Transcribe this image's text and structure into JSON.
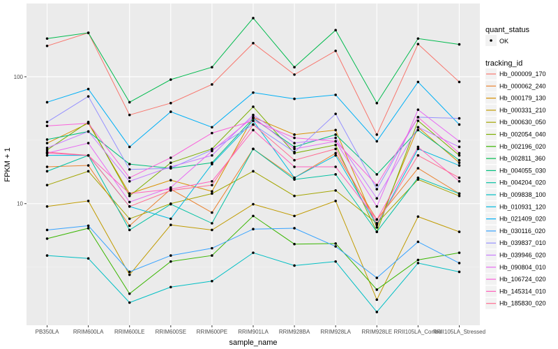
{
  "chart_data": {
    "type": "line",
    "xlabel": "sample_name",
    "ylabel": "FPKM + 1",
    "yscale": "log10",
    "ylim": [
      1.1,
      378
    ],
    "yticks": [
      10,
      100
    ],
    "ytick_labels": [
      "10",
      "100"
    ],
    "grid": true,
    "legend_position": "right",
    "categories": [
      "PB350LA",
      "RRIM600LA",
      "RRIM600LE",
      "RRIM600SE",
      "RRIM600PE",
      "RRIM901LA",
      "RRIM928BA",
      "RRIM928LA",
      "RRIM928LE",
      "RRII105LA_Control",
      "RRII105LA_Stressed"
    ],
    "shape_legend": {
      "title": "quant_status",
      "items": [
        "OK"
      ]
    },
    "color_legend_title": "tracking_id",
    "series": [
      {
        "name": "Hb_000009_170",
        "color": "#F8766D",
        "values": [
          175,
          222,
          50,
          62,
          87,
          184,
          104,
          160,
          35,
          181,
          91
        ]
      },
      {
        "name": "Hb_000062_240",
        "color": "#EA8331",
        "values": [
          19.5,
          20,
          6.7,
          13,
          8.5,
          27,
          16,
          25,
          7.5,
          19,
          12
        ]
      },
      {
        "name": "Hb_000179_130",
        "color": "#D89000",
        "values": [
          30,
          43,
          12,
          15.3,
          12.5,
          48,
          35,
          38,
          6.5,
          40,
          21
        ]
      },
      {
        "name": "Hb_000331_210",
        "color": "#C09B00",
        "values": [
          9.5,
          10.5,
          2.75,
          6.8,
          6.2,
          9.9,
          8,
          10.5,
          1.75,
          7.9,
          6
        ]
      },
      {
        "name": "Hb_000630_050",
        "color": "#A3A500",
        "values": [
          14,
          18,
          7.6,
          10,
          12,
          18,
          11.5,
          12.7,
          7,
          15.5,
          11.5
        ]
      },
      {
        "name": "Hb_002054_040",
        "color": "#7CAE00",
        "values": [
          26.5,
          44,
          11.5,
          21,
          27,
          58,
          25,
          29,
          6,
          45,
          24
        ]
      },
      {
        "name": "Hb_002196_020",
        "color": "#39B600",
        "values": [
          5.3,
          6.4,
          1.95,
          3.5,
          3.9,
          8,
          4.8,
          4.85,
          2.1,
          3.6,
          4.1
        ]
      },
      {
        "name": "Hb_002811_360",
        "color": "#00BB4E",
        "values": [
          200,
          222,
          63,
          95,
          119,
          290,
          119,
          233,
          62,
          200,
          180
        ]
      },
      {
        "name": "Hb_004055_030",
        "color": "#00BF7D",
        "values": [
          32,
          37,
          20.5,
          19,
          21,
          47,
          28,
          35,
          17,
          38,
          22
        ]
      },
      {
        "name": "Hb_004204_020",
        "color": "#00C1A3",
        "values": [
          18,
          24,
          6.2,
          9.9,
          7,
          27,
          15.5,
          17,
          6,
          16,
          12
        ]
      },
      {
        "name": "Hb_009838_100",
        "color": "#00BFC4",
        "values": [
          3.9,
          3.7,
          1.66,
          2.2,
          2.45,
          4.1,
          3.25,
          3.5,
          1.4,
          3.4,
          2.9
        ]
      },
      {
        "name": "Hb_010931_120",
        "color": "#00BAE0",
        "values": [
          24,
          24,
          9.5,
          7.6,
          20.5,
          45,
          16,
          24,
          6.8,
          27,
          20
        ]
      },
      {
        "name": "Hb_021409_020",
        "color": "#00B0F6",
        "values": [
          63,
          80,
          28,
          53,
          40,
          75,
          67,
          72,
          31,
          91,
          42
        ]
      },
      {
        "name": "Hb_030116_020",
        "color": "#35A2FF",
        "values": [
          6.2,
          6.7,
          2.9,
          3.9,
          4.45,
          6.3,
          6.4,
          4.6,
          2.6,
          5,
          3.4
        ]
      },
      {
        "name": "Hb_039837_010",
        "color": "#9590FF",
        "values": [
          44,
          70,
          18.6,
          19,
          26.5,
          42,
          25.5,
          51,
          13,
          48,
          47
        ]
      },
      {
        "name": "Hb_039946_020",
        "color": "#C77CFF",
        "values": [
          27.5,
          37,
          15,
          19.5,
          24,
          50,
          30,
          33,
          11,
          40,
          28
        ]
      },
      {
        "name": "Hb_090804_010",
        "color": "#E76BF3",
        "values": [
          25,
          30,
          10.3,
          13.4,
          26,
          48,
          27,
          31,
          9.5,
          55,
          31
        ]
      },
      {
        "name": "Hb_106724_020",
        "color": "#FA62DB",
        "values": [
          41,
          43,
          16,
          23,
          36,
          45,
          33,
          31,
          14,
          48,
          25
        ]
      },
      {
        "name": "Hb_145314_010",
        "color": "#FF62BC",
        "values": [
          25,
          24,
          12,
          13,
          15,
          38,
          19.5,
          19.5,
          7.5,
          28,
          15
        ]
      },
      {
        "name": "Hb_185830_020",
        "color": "#FF6C91",
        "values": [
          25.5,
          24,
          9.5,
          12.7,
          14,
          42,
          22,
          27,
          7,
          24,
          16
        ]
      }
    ]
  }
}
